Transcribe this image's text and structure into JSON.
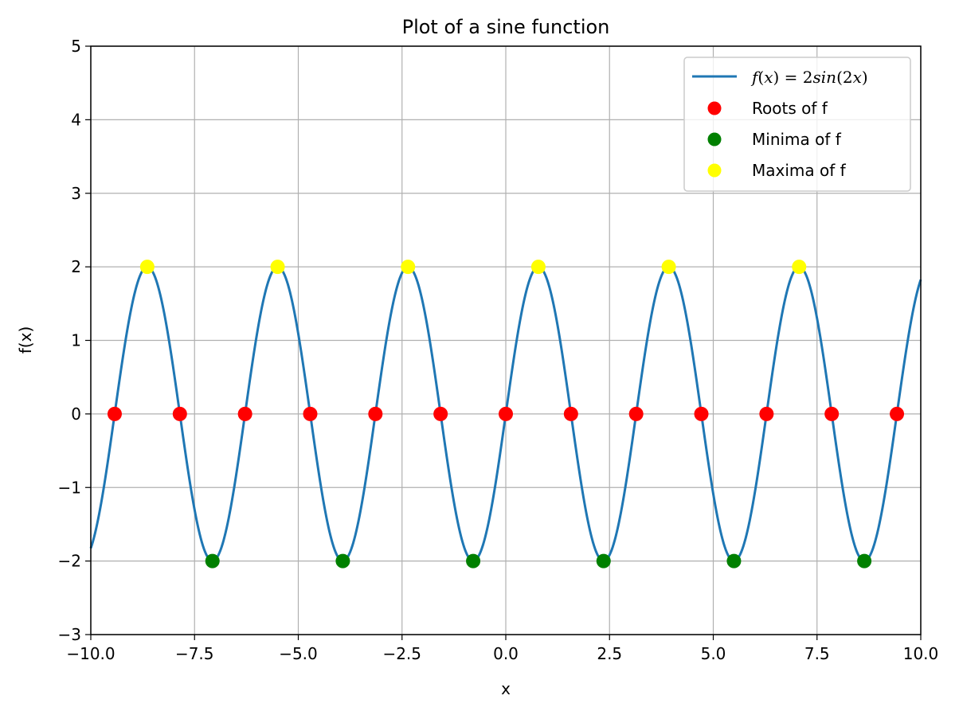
{
  "chart_data": {
    "type": "line",
    "title": "Plot of a sine function",
    "xlabel": "x",
    "ylabel": "f(x)",
    "xlim": [
      -10,
      10
    ],
    "ylim": [
      -3,
      5
    ],
    "grid": true,
    "legend_position": "top-right",
    "x_ticks": [
      -10,
      -7.5,
      -5,
      -2.5,
      0,
      2.5,
      5,
      7.5,
      10
    ],
    "x_tick_labels": [
      "−10.0",
      "−7.5",
      "−5.0",
      "−2.5",
      "0.0",
      "2.5",
      "5.0",
      "7.5",
      "10.0"
    ],
    "y_ticks": [
      -3,
      -2,
      -1,
      0,
      1,
      2,
      3,
      4,
      5
    ],
    "y_tick_labels": [
      "−3",
      "−2",
      "−1",
      "0",
      "1",
      "2",
      "3",
      "4",
      "5"
    ],
    "series": [
      {
        "kind": "line",
        "function": "2*sin(2*x)",
        "x_range": [
          -10,
          10
        ],
        "color": "#1f77b4",
        "legend": {
          "pre": "f",
          "a": "(",
          "b": "x",
          "c": ")",
          "eq": " = 2",
          "fn": "sin",
          "d": "(2",
          "e": "x",
          "f": ")"
        }
      },
      {
        "kind": "scatter",
        "name": "Roots of f",
        "color": "#ff0000",
        "x": [
          -9.4248,
          -7.854,
          -6.2832,
          -4.7124,
          -3.1416,
          -1.5708,
          0,
          1.5708,
          3.1416,
          4.7124,
          6.2832,
          7.854,
          9.4248
        ],
        "y": [
          0,
          0,
          0,
          0,
          0,
          0,
          0,
          0,
          0,
          0,
          0,
          0,
          0
        ]
      },
      {
        "kind": "scatter",
        "name": "Minima of f",
        "color": "#008000",
        "x": [
          -7.0686,
          -3.927,
          -0.7854,
          2.3562,
          5.4978,
          8.6394
        ],
        "y": [
          -2,
          -2,
          -2,
          -2,
          -2,
          -2
        ]
      },
      {
        "kind": "scatter",
        "name": "Maxima of f",
        "color": "#ffff00",
        "x": [
          -8.6394,
          -5.4978,
          -2.3562,
          0.7854,
          3.927,
          7.0686
        ],
        "y": [
          2,
          2,
          2,
          2,
          2,
          2
        ]
      }
    ]
  }
}
